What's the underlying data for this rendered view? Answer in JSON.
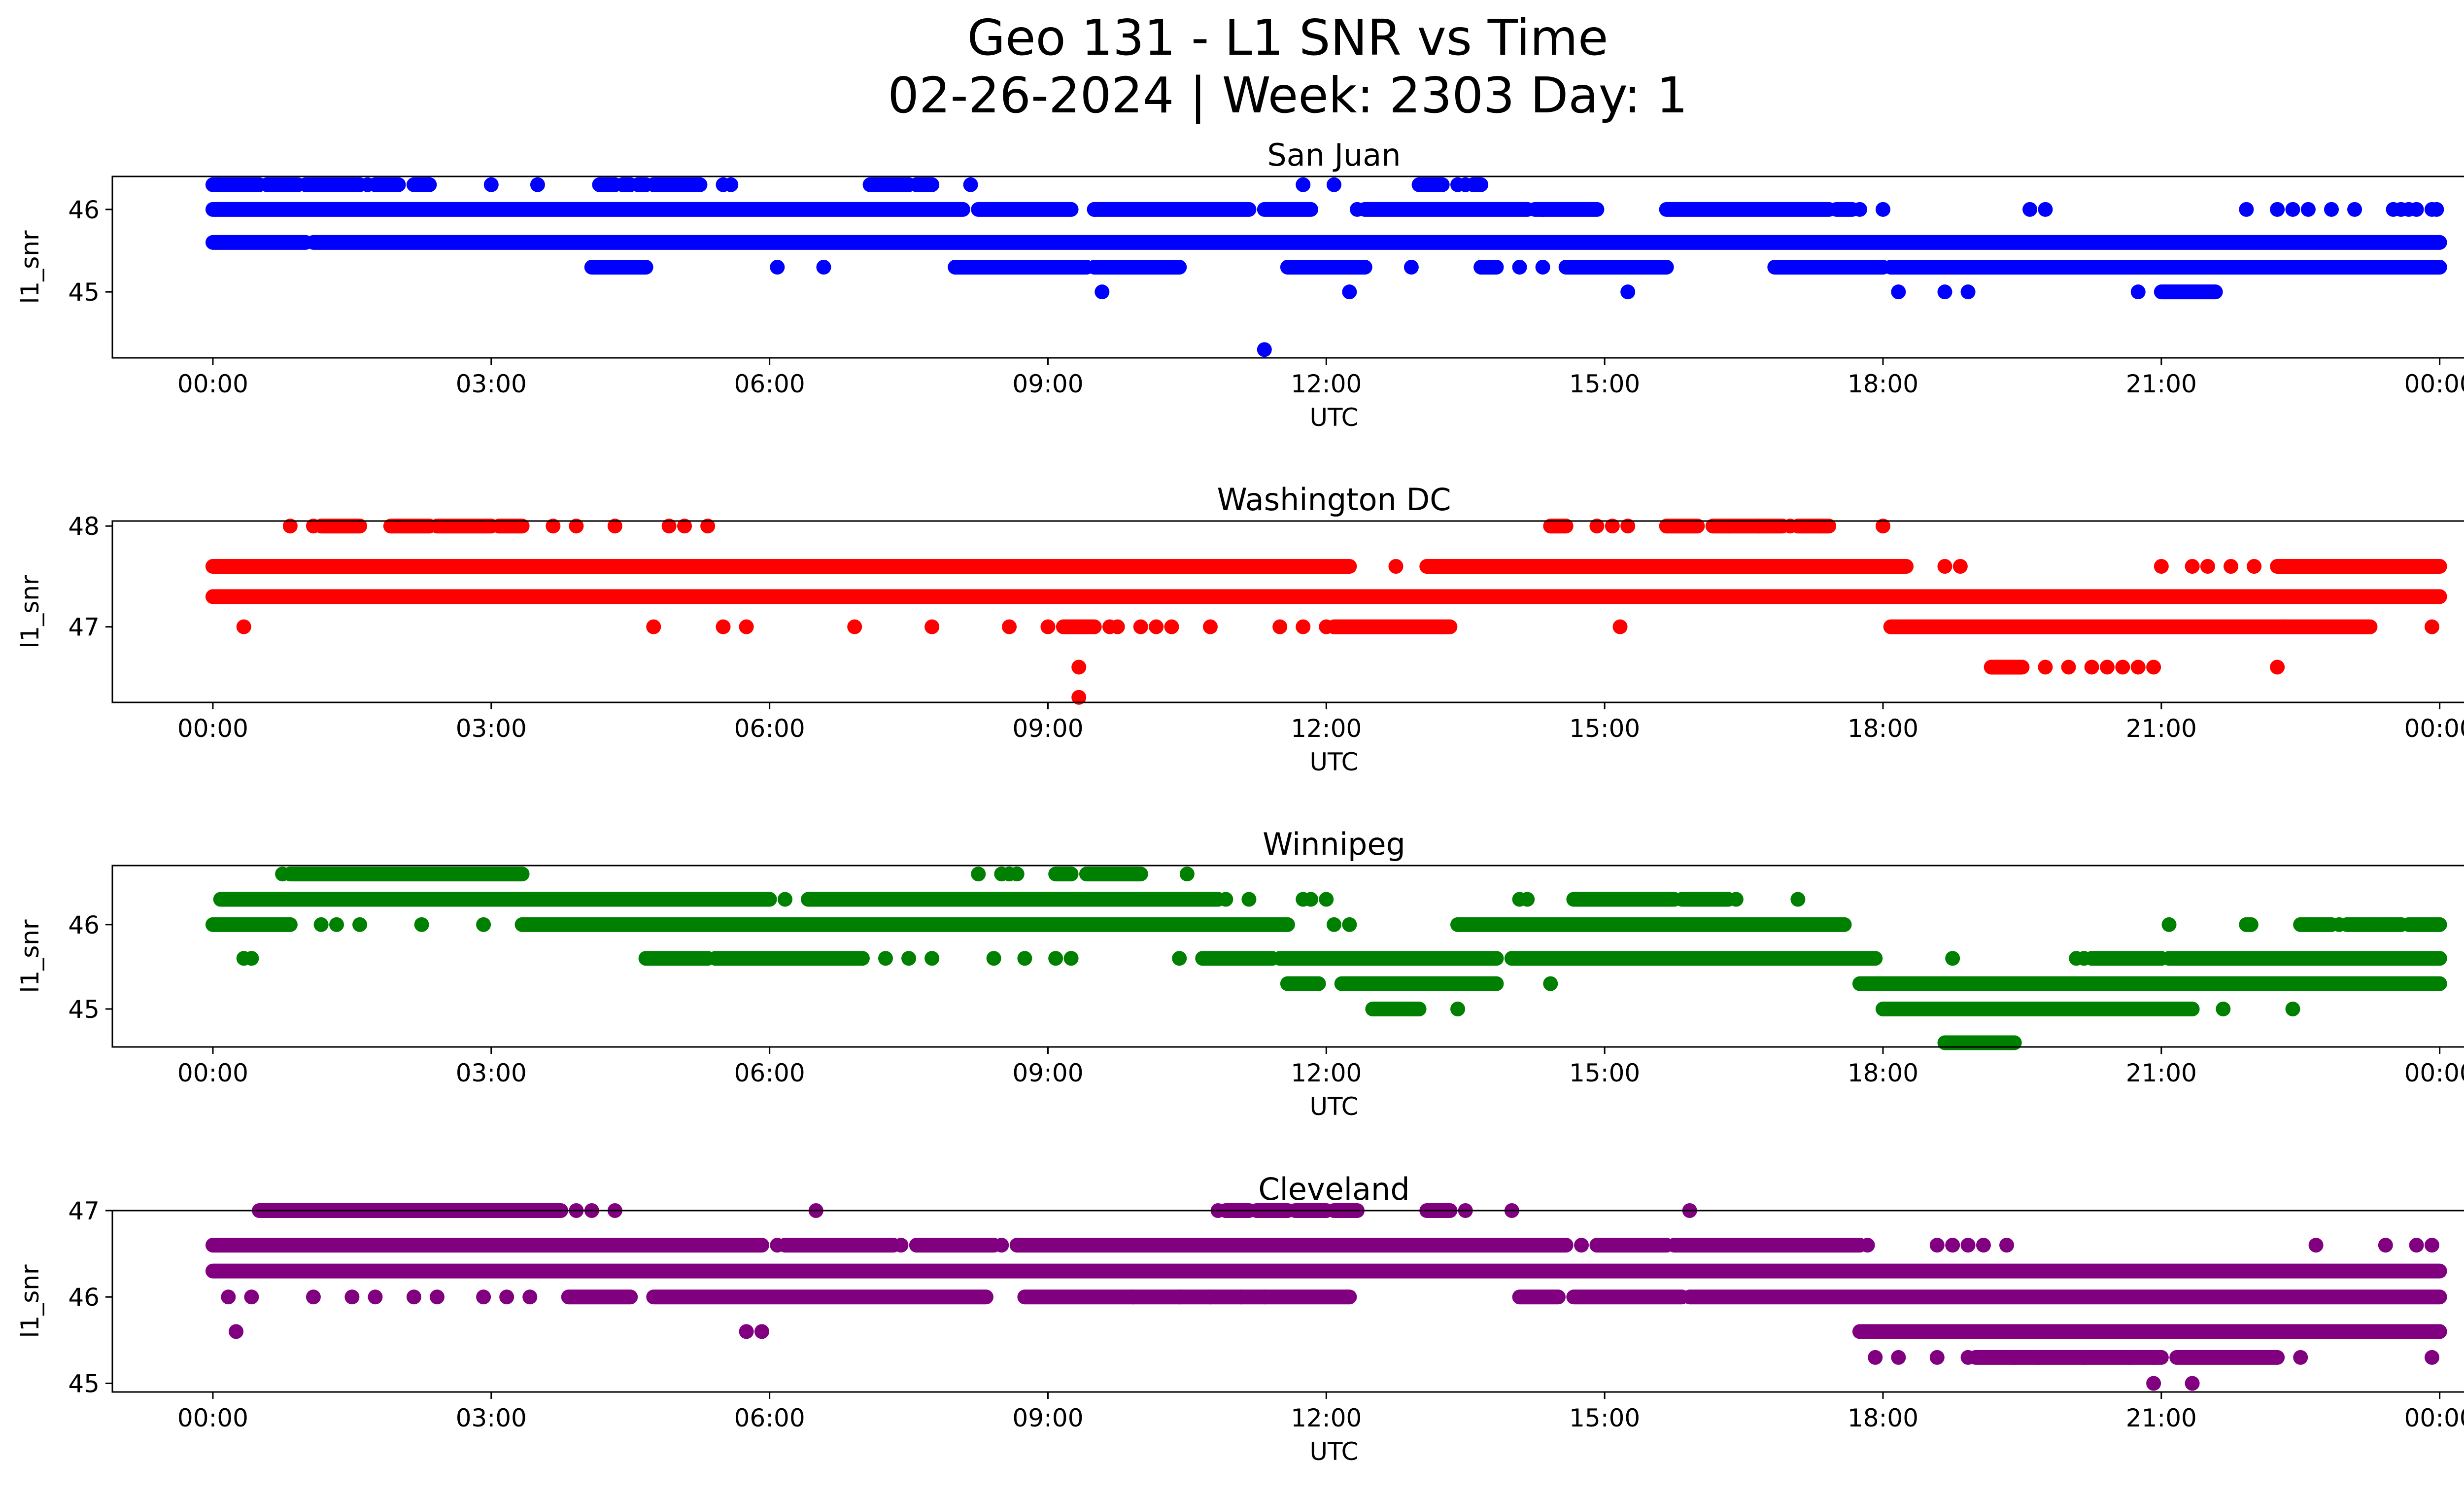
{
  "figure": {
    "title_line1": "Geo 131 - L1 SNR vs Time",
    "title_line2": "02-26-2024 | Week: 2303 Day: 1"
  },
  "chart_data": [
    {
      "type": "scatter",
      "title": "San Juan",
      "xlabel": "UTC",
      "ylabel": "l1_snr",
      "color": "#0000ff",
      "xlim": [
        "-01:05",
        "25:15"
      ],
      "ylim": [
        44.2,
        46.4
      ],
      "x_ticks": [
        "00:00",
        "03:00",
        "06:00",
        "09:00",
        "12:00",
        "15:00",
        "18:00",
        "21:00",
        "00:00"
      ],
      "y_ticks": [
        45,
        46
      ],
      "series": [
        {
          "y": 46.3,
          "segments": [
            [
              "00:00",
              "00:30"
            ],
            [
              "00:35",
              "00:55"
            ],
            [
              "01:00",
              "01:35"
            ],
            [
              "01:45",
              "02:00"
            ],
            [
              "02:10",
              "02:20"
            ],
            [
              "04:10",
              "04:20"
            ],
            [
              "04:25",
              "04:30"
            ],
            [
              "04:35",
              "04:40"
            ],
            [
              "04:45",
              "05:15"
            ],
            [
              "07:05",
              "07:30"
            ],
            [
              "07:35",
              "07:45"
            ],
            [
              "13:00",
              "13:15"
            ],
            [
              "13:35",
              "13:40"
            ]
          ],
          "points": [
            "01:40",
            "02:20",
            "03:00",
            "03:30",
            "05:30",
            "05:35",
            "08:10",
            "11:45",
            "12:05",
            "13:25",
            "13:30"
          ]
        },
        {
          "y": 46.0,
          "segments": [
            [
              "00:00",
              "08:05"
            ],
            [
              "08:15",
              "09:15"
            ],
            [
              "09:30",
              "11:10"
            ],
            [
              "11:20",
              "11:50"
            ],
            [
              "12:25",
              "14:10"
            ],
            [
              "14:15",
              "14:55"
            ],
            [
              "15:40",
              "17:25"
            ],
            [
              "17:30",
              "17:40"
            ]
          ],
          "points": [
            "09:30",
            "12:20",
            "14:20",
            "17:45",
            "18:00",
            "19:35",
            "19:45",
            "21:55",
            "22:15",
            "22:25",
            "22:35",
            "22:50",
            "23:05",
            "23:30",
            "23:35",
            "23:40",
            "23:45",
            "23:55",
            "23:58"
          ]
        },
        {
          "y": 45.6,
          "segments": [
            [
              "00:00",
              "01:00"
            ],
            [
              "01:05",
              "24:00"
            ]
          ],
          "points": []
        },
        {
          "y": 45.3,
          "segments": [
            [
              "04:05",
              "04:40"
            ],
            [
              "08:00",
              "09:25"
            ],
            [
              "09:30",
              "10:25"
            ],
            [
              "11:35",
              "12:25"
            ],
            [
              "13:40",
              "13:50"
            ],
            [
              "14:35",
              "15:40"
            ],
            [
              "16:50",
              "18:00"
            ],
            [
              "18:05",
              "24:00"
            ]
          ],
          "points": [
            "04:10",
            "06:05",
            "06:35",
            "12:55",
            "13:45",
            "14:05",
            "14:20"
          ]
        },
        {
          "y": 45.0,
          "segments": [
            [
              "21:00",
              "21:35"
            ]
          ],
          "points": [
            "09:35",
            "12:15",
            "15:15",
            "18:10",
            "18:40",
            "18:55",
            "20:45"
          ]
        },
        {
          "y": 44.3,
          "segments": [],
          "points": [
            "11:20"
          ]
        }
      ]
    },
    {
      "type": "scatter",
      "title": "Washington DC",
      "xlabel": "UTC",
      "ylabel": "l1_snr",
      "color": "#ff0000",
      "xlim": [
        "-01:05",
        "25:15"
      ],
      "ylim": [
        46.25,
        48.05
      ],
      "x_ticks": [
        "00:00",
        "03:00",
        "06:00",
        "09:00",
        "12:00",
        "15:00",
        "18:00",
        "21:00",
        "00:00"
      ],
      "y_ticks": [
        47,
        48
      ],
      "series": [
        {
          "y": 48.0,
          "segments": [
            [
              "01:10",
              "01:35"
            ],
            [
              "01:55",
              "02:20"
            ],
            [
              "02:25",
              "03:00"
            ],
            [
              "03:05",
              "03:20"
            ],
            [
              "14:25",
              "14:35"
            ],
            [
              "15:40",
              "16:00"
            ],
            [
              "16:10",
              "16:55"
            ],
            [
              "17:05",
              "17:25"
            ]
          ],
          "points": [
            "00:50",
            "01:05",
            "03:40",
            "03:55",
            "04:20",
            "04:55",
            "05:05",
            "05:20",
            "14:55",
            "15:05",
            "15:15",
            "16:20",
            "16:40",
            "17:00",
            "17:20",
            "18:00"
          ]
        },
        {
          "y": 47.6,
          "segments": [
            [
              "00:00",
              "12:15"
            ],
            [
              "13:05",
              "18:15"
            ],
            [
              "22:15",
              "24:00"
            ]
          ],
          "points": [
            "12:45",
            "18:40",
            "18:50",
            "21:00",
            "21:20",
            "21:30",
            "21:45",
            "22:00",
            "22:20",
            "22:35",
            "22:45",
            "23:00"
          ]
        },
        {
          "y": 47.3,
          "segments": [
            [
              "00:00",
              "24:00"
            ]
          ],
          "points": []
        },
        {
          "y": 47.0,
          "segments": [
            [
              "09:10",
              "09:30"
            ],
            [
              "12:05",
              "13:20"
            ],
            [
              "18:05",
              "23:15"
            ]
          ],
          "points": [
            "00:20",
            "04:45",
            "05:30",
            "05:45",
            "06:55",
            "07:45",
            "08:35",
            "09:00",
            "09:40",
            "09:45",
            "10:00",
            "10:10",
            "10:20",
            "10:45",
            "11:30",
            "11:45",
            "12:00",
            "15:10",
            "22:20",
            "23:55"
          ]
        },
        {
          "y": 46.6,
          "segments": [
            [
              "19:10",
              "19:30"
            ]
          ],
          "points": [
            "09:20",
            "19:45",
            "20:00",
            "20:15",
            "20:25",
            "20:35",
            "20:45",
            "20:55",
            "22:15"
          ]
        },
        {
          "y": 46.3,
          "segments": [],
          "points": [
            "09:20"
          ]
        }
      ]
    },
    {
      "type": "scatter",
      "title": "Winnipeg",
      "xlabel": "UTC",
      "ylabel": "l1_snr",
      "color": "#008000",
      "xlim": [
        "-01:05",
        "25:15"
      ],
      "ylim": [
        44.55,
        46.7
      ],
      "x_ticks": [
        "00:00",
        "03:00",
        "06:00",
        "09:00",
        "12:00",
        "15:00",
        "18:00",
        "21:00",
        "00:00"
      ],
      "y_ticks": [
        45,
        46
      ],
      "series": [
        {
          "y": 46.6,
          "segments": [
            [
              "00:50",
              "03:20"
            ],
            [
              "09:05",
              "09:15"
            ],
            [
              "09:25",
              "10:00"
            ]
          ],
          "points": [
            "00:45",
            "08:15",
            "08:30",
            "08:35",
            "08:40",
            "10:30"
          ]
        },
        {
          "y": 46.3,
          "segments": [
            [
              "00:05",
              "06:00"
            ],
            [
              "06:25",
              "10:50"
            ],
            [
              "14:40",
              "15:45"
            ],
            [
              "15:50",
              "16:20"
            ]
          ],
          "points": [
            "06:10",
            "10:55",
            "11:10",
            "11:45",
            "11:50",
            "12:00",
            "14:05",
            "14:10",
            "16:25",
            "17:05"
          ]
        },
        {
          "y": 46.0,
          "segments": [
            [
              "00:00",
              "00:50"
            ],
            [
              "03:20",
              "11:35"
            ],
            [
              "13:25",
              "17:35"
            ],
            [
              "21:55",
              "21:58"
            ],
            [
              "22:30",
              "22:50"
            ],
            [
              "23:00",
              "23:35"
            ],
            [
              "23:40",
              "24:00"
            ]
          ],
          "points": [
            "01:10",
            "01:20",
            "01:35",
            "02:15",
            "02:55",
            "12:05",
            "12:15",
            "21:05",
            "21:55",
            "22:35",
            "22:55",
            "23:05",
            "23:15",
            "23:25",
            "23:35"
          ]
        },
        {
          "y": 45.6,
          "segments": [
            [
              "04:40",
              "05:20"
            ],
            [
              "05:25",
              "07:00"
            ],
            [
              "10:40",
              "11:25"
            ],
            [
              "11:30",
              "13:50"
            ],
            [
              "14:00",
              "17:55"
            ],
            [
              "20:15",
              "21:00"
            ],
            [
              "21:05",
              "24:00"
            ]
          ],
          "points": [
            "00:20",
            "00:25",
            "07:15",
            "07:30",
            "07:45",
            "08:25",
            "08:45",
            "09:05",
            "09:15",
            "10:25",
            "18:45",
            "20:05",
            "20:10"
          ]
        },
        {
          "y": 45.3,
          "segments": [
            [
              "11:35",
              "11:55"
            ],
            [
              "12:10",
              "13:50"
            ],
            [
              "17:45",
              "24:00"
            ]
          ],
          "points": [
            "14:25"
          ]
        },
        {
          "y": 45.0,
          "segments": [
            [
              "18:00",
              "21:20"
            ],
            [
              "12:30",
              "13:00"
            ]
          ],
          "points": [
            "13:25",
            "21:40",
            "22:25"
          ]
        },
        {
          "y": 44.6,
          "segments": [
            [
              "18:40",
              "19:25"
            ]
          ],
          "points": []
        }
      ]
    },
    {
      "type": "scatter",
      "title": "Cleveland",
      "xlabel": "UTC",
      "ylabel": "l1_snr",
      "color": "#800080",
      "xlim": [
        "-01:05",
        "25:15"
      ],
      "ylim": [
        44.9,
        47.0
      ],
      "x_ticks": [
        "00:00",
        "03:00",
        "06:00",
        "09:00",
        "12:00",
        "15:00",
        "18:00",
        "21:00",
        "00:00"
      ],
      "y_ticks": [
        45,
        46,
        47
      ],
      "series": [
        {
          "y": 47.0,
          "segments": [
            [
              "00:30",
              "03:45"
            ],
            [
              "10:55",
              "11:10"
            ],
            [
              "11:15",
              "11:35"
            ],
            [
              "11:40",
              "12:00"
            ],
            [
              "12:05",
              "12:20"
            ],
            [
              "13:05",
              "13:20"
            ]
          ],
          "points": [
            "03:55",
            "04:05",
            "04:20",
            "06:30",
            "10:50",
            "13:30",
            "14:00",
            "15:55"
          ]
        },
        {
          "y": 46.6,
          "segments": [
            [
              "00:00",
              "05:55"
            ],
            [
              "06:10",
              "07:20"
            ],
            [
              "07:35",
              "08:25"
            ],
            [
              "08:40",
              "14:35"
            ],
            [
              "14:55",
              "15:40"
            ],
            [
              "15:45",
              "17:45"
            ]
          ],
          "points": [
            "06:05",
            "07:25",
            "08:30",
            "14:45",
            "15:05",
            "17:50",
            "18:35",
            "18:45",
            "18:55",
            "19:05",
            "19:20",
            "22:40",
            "23:25",
            "23:45",
            "23:55"
          ]
        },
        {
          "y": 46.3,
          "segments": [
            [
              "00:00",
              "24:00"
            ]
          ],
          "points": []
        },
        {
          "y": 46.0,
          "segments": [
            [
              "03:50",
              "04:30"
            ],
            [
              "04:45",
              "08:20"
            ],
            [
              "08:45",
              "12:15"
            ],
            [
              "14:05",
              "14:30"
            ],
            [
              "14:40",
              "15:50"
            ],
            [
              "15:55",
              "24:00"
            ]
          ],
          "points": [
            "00:10",
            "00:25",
            "01:05",
            "01:30",
            "01:45",
            "02:10",
            "02:25",
            "02:55",
            "03:10",
            "03:25",
            "09:55",
            "10:25",
            "10:45",
            "11:05",
            "11:20"
          ]
        },
        {
          "y": 45.6,
          "segments": [
            [
              "17:45",
              "24:00"
            ]
          ],
          "points": [
            "00:15",
            "05:45",
            "05:55"
          ]
        },
        {
          "y": 45.3,
          "segments": [
            [
              "19:00",
              "21:00"
            ],
            [
              "21:10",
              "22:15"
            ]
          ],
          "points": [
            "17:55",
            "18:10",
            "18:35",
            "18:55",
            "19:25",
            "19:40",
            "20:10",
            "20:40",
            "20:55",
            "22:30",
            "23:55"
          ]
        },
        {
          "y": 45.0,
          "segments": [],
          "points": [
            "20:55",
            "21:20"
          ]
        }
      ]
    }
  ]
}
